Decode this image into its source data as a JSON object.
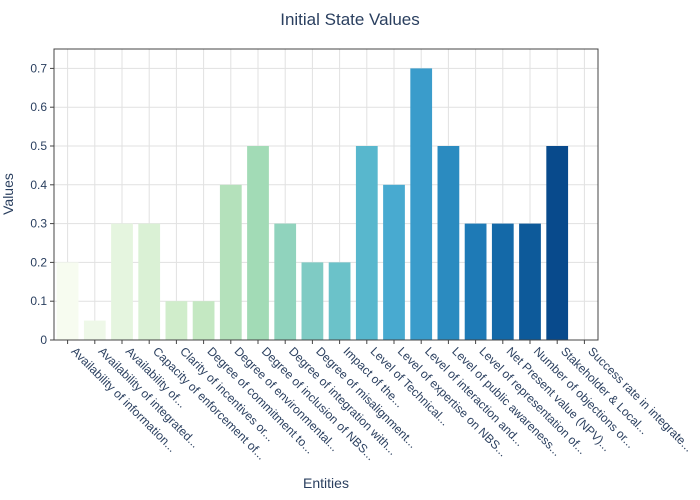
{
  "chart_data": {
    "type": "bar",
    "title": "Initial State Values",
    "xlabel": "Entities",
    "ylabel": "Values",
    "ylim": [
      0,
      0.75
    ],
    "yticks": [
      0,
      0.1,
      0.2,
      0.3,
      0.4,
      0.5,
      0.6,
      0.7
    ],
    "ytick_labels": [
      "0",
      "0.1",
      "0.2",
      "0.3",
      "0.4",
      "0.5",
      "0.6",
      "0.7"
    ],
    "grid": true,
    "categories": [
      "Availability of information...",
      "Availability of integrated...",
      "Availability of...",
      "Capacity of enforcement of...",
      "Clarity of incentives or...",
      "Degree of commitment to...",
      "Degree of environmental...",
      "Degree of inclusion of NBS...",
      "Degree of integration with...",
      "Degree of misalignment...",
      "Impact of the...",
      "Level of Technical...",
      "Level of expertise on NBS...",
      "Level of interaction and...",
      "Level of public awareness...",
      "Level of representation of...",
      "Net Present value (NPV)...",
      "Number of objections or...",
      "Stakeholder & Local...",
      "Success rate in integrate..."
    ],
    "values": [
      0.2,
      0.05,
      0.3,
      0.3,
      0.1,
      0.1,
      0.4,
      0.5,
      0.3,
      0.2,
      0.2,
      0.5,
      0.4,
      0.7,
      0.5,
      0.3,
      0.3,
      0.3,
      0.5,
      0
    ],
    "colors": [
      "#f7fcf0",
      "#eef8e8",
      "#e5f5df",
      "#daf1d5",
      "#d0edcb",
      "#c4e8c2",
      "#b4e1bb",
      "#a2dbb6",
      "#90d3bd",
      "#7fcbc4",
      "#6bc2c9",
      "#58b7cd",
      "#48aad0",
      "#3a9ccb",
      "#2b8bc0",
      "#1e7ab6",
      "#1469a8",
      "#0d5a9a",
      "#084a8c",
      "#084081"
    ]
  }
}
